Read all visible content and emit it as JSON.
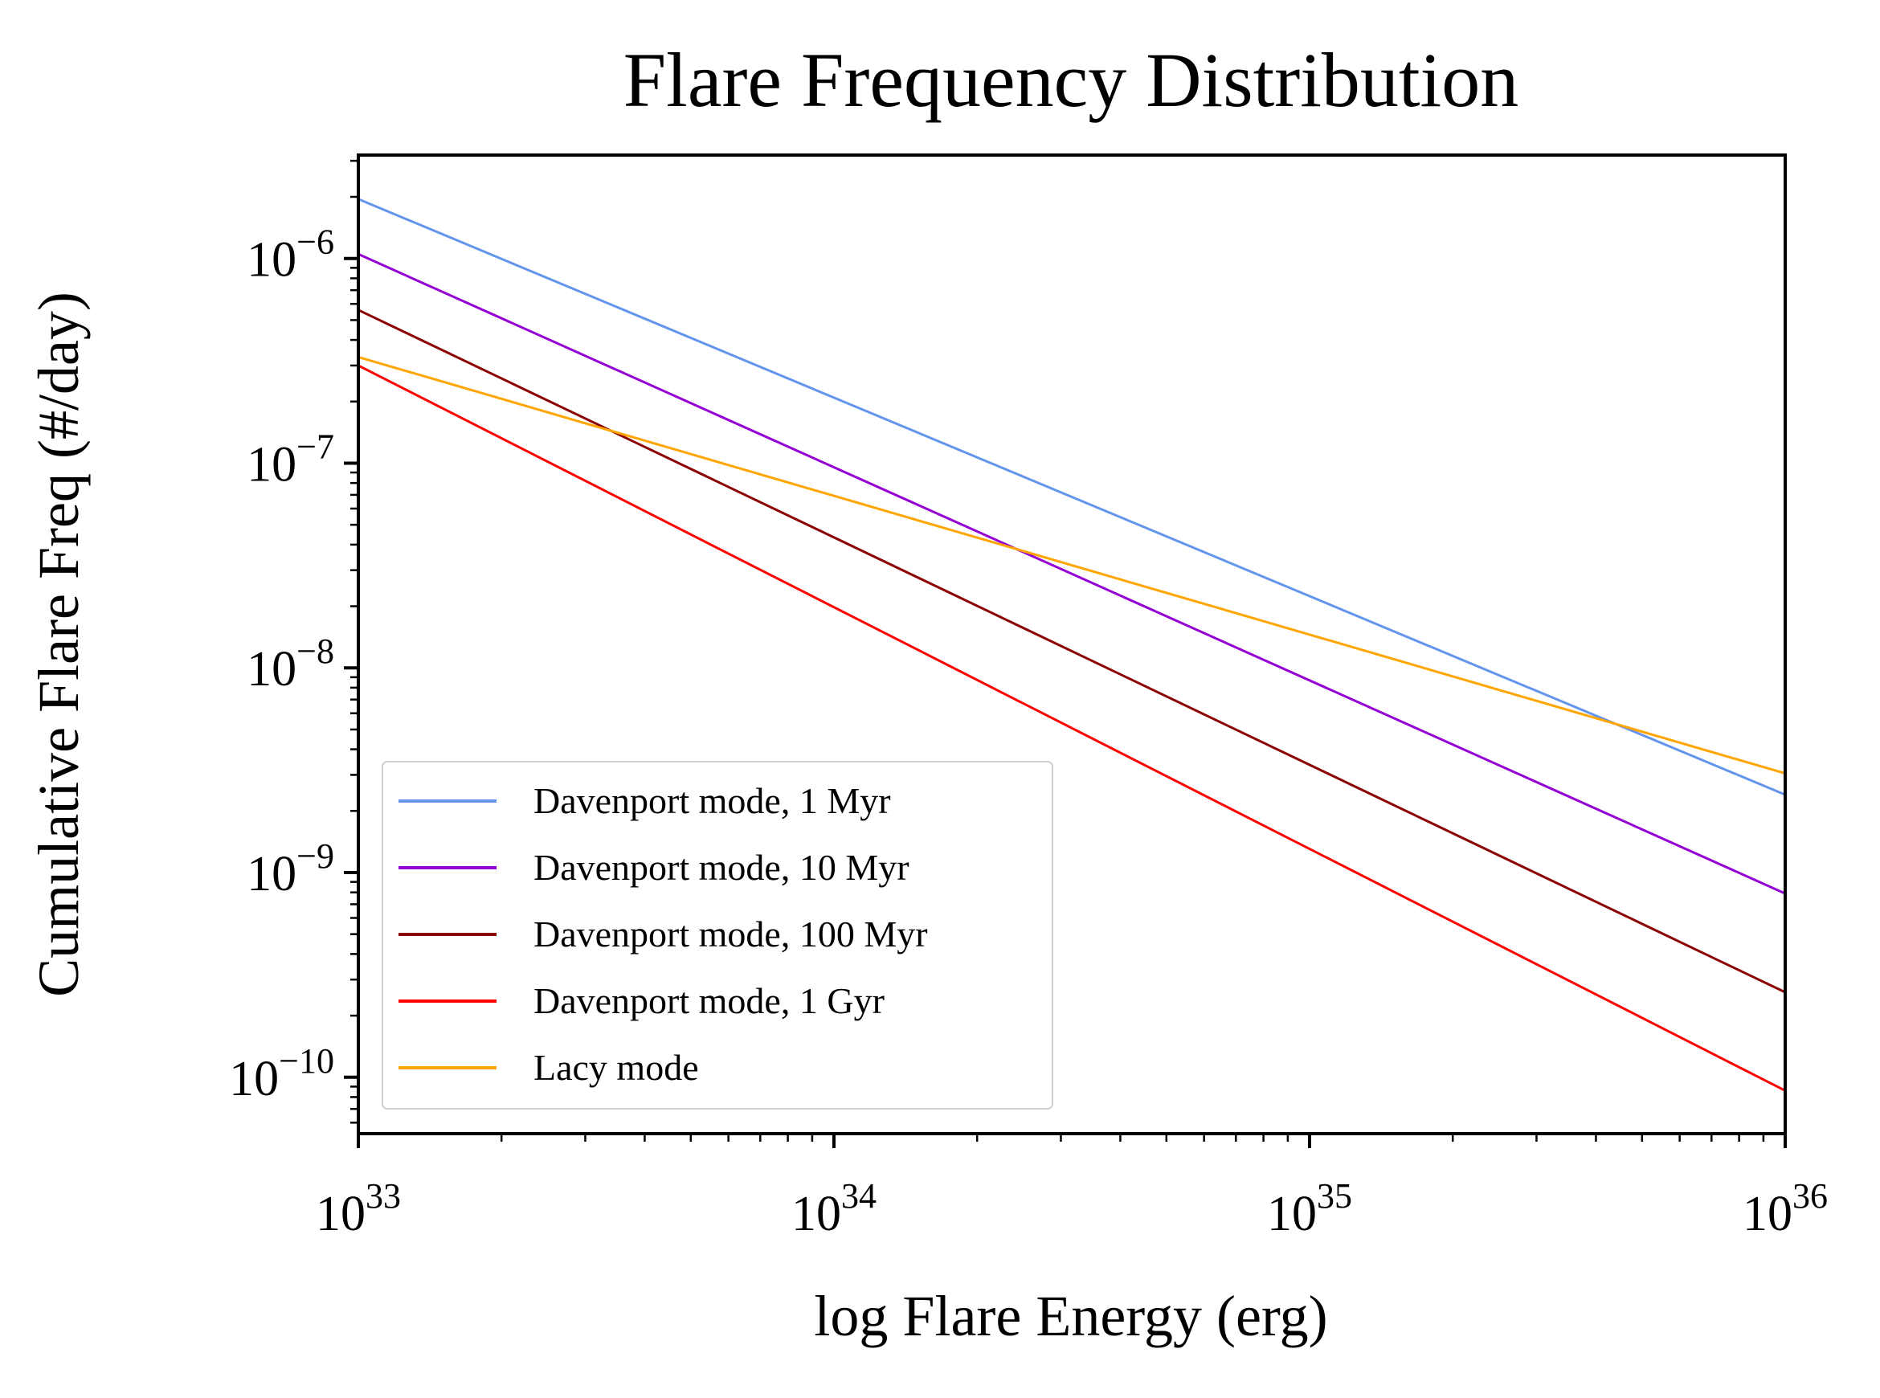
{
  "chart_data": {
    "type": "line",
    "title": "Flare Frequency Distribution",
    "xlabel": "log Flare Energy (erg)",
    "ylabel": "Cumulative Flare Freq (#/day)",
    "xscale": "log",
    "yscale": "log",
    "xlim": [
      1e+33,
      1e+36
    ],
    "ylim": [
      5.3e-11,
      3.2e-06
    ],
    "grid": false,
    "legend_position": "lower-left",
    "x_ticks": [
      {
        "base": "10",
        "exp": "33"
      },
      {
        "base": "10",
        "exp": "34"
      },
      {
        "base": "10",
        "exp": "35"
      },
      {
        "base": "10",
        "exp": "36"
      }
    ],
    "y_ticks": [
      {
        "base": "10",
        "exp": "−10"
      },
      {
        "base": "10",
        "exp": "−9"
      },
      {
        "base": "10",
        "exp": "−8"
      },
      {
        "base": "10",
        "exp": "−7"
      },
      {
        "base": "10",
        "exp": "−6"
      }
    ],
    "series": [
      {
        "name": "Davenport mode, 1 Myr",
        "color": "#6495ED",
        "x": [
          1e+33,
          1e+36
        ],
        "y": [
          1.95e-06,
          2.4e-09
        ]
      },
      {
        "name": "Davenport mode, 10 Myr",
        "color": "#9400D3",
        "x": [
          1e+33,
          1e+36
        ],
        "y": [
          1.05e-06,
          7.9e-10
        ]
      },
      {
        "name": "Davenport mode, 100 Myr",
        "color": "#8B0000",
        "x": [
          1e+33,
          1e+36
        ],
        "y": [
          5.6e-07,
          2.6e-10
        ]
      },
      {
        "name": "Davenport mode, 1 Gyr",
        "color": "#FF0000",
        "x": [
          1e+33,
          1e+36
        ],
        "y": [
          3e-07,
          8.6e-11
        ]
      },
      {
        "name": "Lacy mode",
        "color": "#FFA500",
        "x": [
          1e+33,
          1e+36
        ],
        "y": [
          3.3e-07,
          3.05e-09
        ]
      }
    ]
  }
}
